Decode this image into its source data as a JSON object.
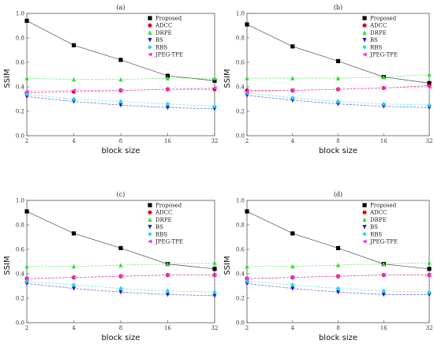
{
  "chart_data": [
    {
      "type": "line",
      "title": "(a)",
      "xlabel": "block size",
      "ylabel": "SSIM",
      "x": [
        2,
        4,
        8,
        16,
        32
      ],
      "x_ticks": [
        "2",
        "4",
        "8",
        "16",
        "32"
      ],
      "y_ticks": [
        "0.0",
        "0.2",
        "0.4",
        "0.6",
        "0.8",
        "1.0"
      ],
      "ylim": [
        0,
        1
      ],
      "legend_position": "top-right",
      "series": [
        {
          "name": "Proposed",
          "color": "#000000",
          "marker": "square",
          "values": [
            0.94,
            0.74,
            0.62,
            0.49,
            0.45
          ]
        },
        {
          "name": "ADCC",
          "color": "#e8001c",
          "marker": "circle",
          "values": [
            0.35,
            0.36,
            0.37,
            0.38,
            0.38
          ]
        },
        {
          "name": "DRPE",
          "color": "#33dd33",
          "marker": "triangle-up",
          "values": [
            0.47,
            0.46,
            0.46,
            0.47,
            0.47
          ]
        },
        {
          "name": "BS",
          "color": "#1a1ad6",
          "marker": "triangle-down",
          "values": [
            0.32,
            0.28,
            0.25,
            0.23,
            0.22
          ]
        },
        {
          "name": "RBS",
          "color": "#22d8e8",
          "marker": "diamond",
          "values": [
            0.34,
            0.3,
            0.28,
            0.26,
            0.24
          ]
        },
        {
          "name": "JPEG-TPE",
          "color": "#e83ce8",
          "marker": "triangle-left",
          "values": [
            0.36,
            0.37,
            0.37,
            0.38,
            0.39
          ]
        }
      ]
    },
    {
      "type": "line",
      "title": "(b)",
      "xlabel": "block size",
      "ylabel": "SSIM",
      "x": [
        2,
        4,
        8,
        16,
        32
      ],
      "x_ticks": [
        "2",
        "4",
        "8",
        "16",
        "32"
      ],
      "y_ticks": [
        "0.0",
        "0.2",
        "0.4",
        "0.6",
        "0.8",
        "1.0"
      ],
      "ylim": [
        0,
        1
      ],
      "legend_position": "top-right",
      "series": [
        {
          "name": "Proposed",
          "color": "#000000",
          "marker": "square",
          "values": [
            0.91,
            0.73,
            0.61,
            0.48,
            0.43
          ]
        },
        {
          "name": "ADCC",
          "color": "#e8001c",
          "marker": "circle",
          "values": [
            0.37,
            0.37,
            0.38,
            0.39,
            0.41
          ]
        },
        {
          "name": "DRPE",
          "color": "#33dd33",
          "marker": "triangle-up",
          "values": [
            0.47,
            0.47,
            0.47,
            0.48,
            0.5
          ]
        },
        {
          "name": "BS",
          "color": "#1a1ad6",
          "marker": "triangle-down",
          "values": [
            0.33,
            0.29,
            0.26,
            0.24,
            0.23
          ]
        },
        {
          "name": "RBS",
          "color": "#22d8e8",
          "marker": "diamond",
          "values": [
            0.35,
            0.31,
            0.28,
            0.26,
            0.25
          ]
        },
        {
          "name": "JPEG-TPE",
          "color": "#e83ce8",
          "marker": "triangle-left",
          "values": [
            0.36,
            0.37,
            0.38,
            0.39,
            0.4
          ]
        }
      ]
    },
    {
      "type": "line",
      "title": "(c)",
      "xlabel": "block size",
      "ylabel": "SSIM",
      "x": [
        2,
        4,
        8,
        16,
        32
      ],
      "x_ticks": [
        "2",
        "4",
        "8",
        "16",
        "32"
      ],
      "y_ticks": [
        "0.0",
        "0.2",
        "0.4",
        "0.6",
        "0.8",
        "1.0"
      ],
      "ylim": [
        0,
        1
      ],
      "legend_position": "top-right",
      "series": [
        {
          "name": "Proposed",
          "color": "#000000",
          "marker": "square",
          "values": [
            0.91,
            0.73,
            0.61,
            0.48,
            0.44
          ]
        },
        {
          "name": "ADCC",
          "color": "#e8001c",
          "marker": "circle",
          "values": [
            0.36,
            0.37,
            0.38,
            0.39,
            0.39
          ]
        },
        {
          "name": "DRPE",
          "color": "#33dd33",
          "marker": "triangle-up",
          "values": [
            0.46,
            0.46,
            0.47,
            0.48,
            0.49
          ]
        },
        {
          "name": "BS",
          "color": "#1a1ad6",
          "marker": "triangle-down",
          "values": [
            0.32,
            0.28,
            0.25,
            0.23,
            0.22
          ]
        },
        {
          "name": "RBS",
          "color": "#22d8e8",
          "marker": "diamond",
          "values": [
            0.34,
            0.31,
            0.28,
            0.26,
            0.25
          ]
        },
        {
          "name": "JPEG-TPE",
          "color": "#e83ce8",
          "marker": "triangle-left",
          "values": [
            0.36,
            0.37,
            0.38,
            0.39,
            0.39
          ]
        }
      ]
    },
    {
      "type": "line",
      "title": "(d)",
      "xlabel": "block size",
      "ylabel": "SSIM",
      "x": [
        2,
        4,
        8,
        16,
        32
      ],
      "x_ticks": [
        "2",
        "4",
        "8",
        "16",
        "32"
      ],
      "y_ticks": [
        "0.0",
        "0.2",
        "0.4",
        "0.6",
        "0.8",
        "1.0"
      ],
      "ylim": [
        0,
        1
      ],
      "legend_position": "top-right",
      "series": [
        {
          "name": "Proposed",
          "color": "#000000",
          "marker": "square",
          "values": [
            0.91,
            0.73,
            0.61,
            0.48,
            0.44
          ]
        },
        {
          "name": "ADCC",
          "color": "#e8001c",
          "marker": "circle",
          "values": [
            0.36,
            0.37,
            0.38,
            0.39,
            0.39
          ]
        },
        {
          "name": "DRPE",
          "color": "#33dd33",
          "marker": "triangle-up",
          "values": [
            0.46,
            0.46,
            0.47,
            0.48,
            0.49
          ]
        },
        {
          "name": "BS",
          "color": "#1a1ad6",
          "marker": "triangle-down",
          "values": [
            0.32,
            0.28,
            0.25,
            0.23,
            0.23
          ]
        },
        {
          "name": "RBS",
          "color": "#22d8e8",
          "marker": "diamond",
          "values": [
            0.34,
            0.31,
            0.28,
            0.26,
            0.25
          ]
        },
        {
          "name": "JPEG-TPE",
          "color": "#e83ce8",
          "marker": "triangle-left",
          "values": [
            0.36,
            0.37,
            0.38,
            0.39,
            0.39
          ]
        }
      ]
    }
  ]
}
